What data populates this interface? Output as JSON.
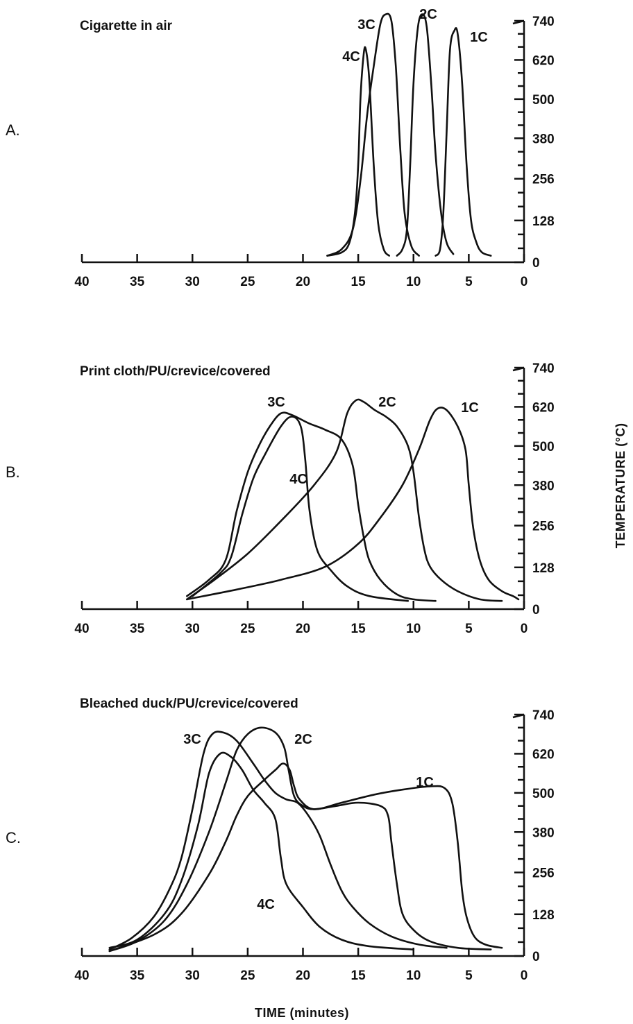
{
  "ylabel": "TEMPERATURE (°C)",
  "xlabel": "TIME (minutes)",
  "chart_data": [
    {
      "type": "line",
      "panel": "A.",
      "title": "Cigarette in air",
      "xlim": [
        40,
        0
      ],
      "ylim": [
        0,
        740
      ],
      "x_ticks": [
        40,
        35,
        30,
        25,
        20,
        15,
        10,
        5,
        0
      ],
      "x_tick_labels": [
        "40",
        "35",
        "30",
        "25",
        "20",
        "15",
        "10",
        "5",
        "0"
      ],
      "y_ticks": [
        0,
        128,
        256,
        380,
        500,
        620,
        740
      ],
      "y_tick_labels": [
        "0",
        "128",
        "256",
        "380",
        "500",
        "620",
        "740"
      ],
      "series": [
        {
          "name": "4C",
          "points": [
            [
              17.8,
              20
            ],
            [
              16.5,
              30
            ],
            [
              15.8,
              60
            ],
            [
              15.3,
              150
            ],
            [
              15,
              300
            ],
            [
              14.8,
              500
            ],
            [
              14.5,
              640
            ],
            [
              14.3,
              650
            ],
            [
              14,
              560
            ],
            [
              13.6,
              300
            ],
            [
              13.2,
              120
            ],
            [
              12.7,
              40
            ],
            [
              12.2,
              20
            ]
          ]
        },
        {
          "name": "3C",
          "points": [
            [
              17.8,
              20
            ],
            [
              16.5,
              40
            ],
            [
              15.5,
              100
            ],
            [
              14.8,
              250
            ],
            [
              14.2,
              450
            ],
            [
              13.6,
              600
            ],
            [
              13,
              730
            ],
            [
              12.5,
              760
            ],
            [
              12,
              740
            ],
            [
              11.6,
              600
            ],
            [
              11.2,
              350
            ],
            [
              10.8,
              150
            ],
            [
              10.2,
              50
            ],
            [
              9.5,
              20
            ]
          ]
        },
        {
          "name": "2C",
          "points": [
            [
              11.5,
              20
            ],
            [
              11,
              40
            ],
            [
              10.6,
              100
            ],
            [
              10.3,
              300
            ],
            [
              10,
              550
            ],
            [
              9.6,
              720
            ],
            [
              9.2,
              760
            ],
            [
              8.8,
              720
            ],
            [
              8.4,
              550
            ],
            [
              8,
              330
            ],
            [
              7.5,
              150
            ],
            [
              7,
              60
            ],
            [
              6.4,
              25
            ]
          ]
        },
        {
          "name": "1C",
          "points": [
            [
              8,
              20
            ],
            [
              7.6,
              40
            ],
            [
              7.3,
              150
            ],
            [
              7,
              400
            ],
            [
              6.7,
              650
            ],
            [
              6.3,
              710
            ],
            [
              6,
              700
            ],
            [
              5.6,
              550
            ],
            [
              5.2,
              300
            ],
            [
              4.8,
              130
            ],
            [
              4.3,
              60
            ],
            [
              3.8,
              30
            ],
            [
              3,
              20
            ]
          ]
        }
      ]
    },
    {
      "type": "line",
      "panel": "B.",
      "title": "Print cloth/PU/crevice/covered",
      "xlim": [
        40,
        0
      ],
      "ylim": [
        0,
        740
      ],
      "x_ticks": [
        40,
        35,
        30,
        25,
        20,
        15,
        10,
        5,
        0
      ],
      "x_tick_labels": [
        "40",
        "35",
        "30",
        "25",
        "20",
        "15",
        "10",
        "5",
        "0"
      ],
      "y_ticks": [
        0,
        128,
        256,
        380,
        500,
        620,
        740
      ],
      "y_tick_labels": [
        "0",
        "128",
        "256",
        "380",
        "500",
        "620",
        "740"
      ],
      "series": [
        {
          "name": "3C",
          "points": [
            [
              30.5,
              40
            ],
            [
              28.5,
              90
            ],
            [
              27,
              150
            ],
            [
              26,
              300
            ],
            [
              25,
              420
            ],
            [
              24,
              500
            ],
            [
              23,
              560
            ],
            [
              22,
              600
            ],
            [
              21,
              595
            ],
            [
              19.5,
              570
            ],
            [
              18,
              550
            ],
            [
              16.5,
              520
            ],
            [
              15.5,
              440
            ],
            [
              15,
              320
            ],
            [
              14.5,
              220
            ],
            [
              14,
              150
            ],
            [
              13,
              90
            ],
            [
              11.5,
              45
            ],
            [
              10,
              30
            ],
            [
              8,
              25
            ]
          ]
        },
        {
          "name": "4C",
          "points": [
            [
              30,
              40
            ],
            [
              27.5,
              110
            ],
            [
              26.5,
              160
            ],
            [
              25.5,
              290
            ],
            [
              24.5,
              400
            ],
            [
              23.5,
              470
            ],
            [
              22,
              560
            ],
            [
              21,
              590
            ],
            [
              20.2,
              560
            ],
            [
              19.8,
              460
            ],
            [
              19.4,
              300
            ],
            [
              18.7,
              180
            ],
            [
              17.5,
              120
            ],
            [
              16,
              70
            ],
            [
              14,
              40
            ],
            [
              10.5,
              25
            ]
          ]
        },
        {
          "name": "2C",
          "points": [
            [
              30.5,
              30
            ],
            [
              28,
              90
            ],
            [
              25,
              170
            ],
            [
              22,
              270
            ],
            [
              19,
              380
            ],
            [
              17,
              480
            ],
            [
              16,
              600
            ],
            [
              15.2,
              640
            ],
            [
              14.5,
              635
            ],
            [
              13.5,
              610
            ],
            [
              12.5,
              590
            ],
            [
              11.5,
              560
            ],
            [
              10.5,
              500
            ],
            [
              10,
              420
            ],
            [
              9.5,
              280
            ],
            [
              9,
              180
            ],
            [
              8.5,
              130
            ],
            [
              7.5,
              90
            ],
            [
              6,
              55
            ],
            [
              4,
              30
            ],
            [
              2,
              25
            ]
          ]
        },
        {
          "name": "1C",
          "points": [
            [
              30.5,
              30
            ],
            [
              26,
              60
            ],
            [
              22,
              90
            ],
            [
              18,
              130
            ],
            [
              15,
              200
            ],
            [
              13,
              280
            ],
            [
              11,
              380
            ],
            [
              9.5,
              490
            ],
            [
              8.5,
              580
            ],
            [
              7.8,
              615
            ],
            [
              7,
              610
            ],
            [
              6,
              560
            ],
            [
              5.3,
              490
            ],
            [
              5,
              380
            ],
            [
              4.6,
              250
            ],
            [
              4,
              150
            ],
            [
              3.2,
              90
            ],
            [
              2,
              55
            ],
            [
              1,
              40
            ],
            [
              0.5,
              30
            ]
          ]
        }
      ]
    },
    {
      "type": "line",
      "panel": "C.",
      "title": "Bleached duck/PU/crevice/covered",
      "xlim": [
        40,
        0
      ],
      "ylim": [
        0,
        740
      ],
      "x_ticks": [
        40,
        35,
        30,
        25,
        20,
        15,
        10,
        5,
        0
      ],
      "x_tick_labels": [
        "40",
        "35",
        "30",
        "25",
        "20",
        "15",
        "10",
        "5",
        "0"
      ],
      "y_ticks": [
        0,
        128,
        256,
        380,
        500,
        620,
        740
      ],
      "y_tick_labels": [
        "0",
        "128",
        "256",
        "380",
        "500",
        "620",
        "740"
      ],
      "series": [
        {
          "name": "4C",
          "points": [
            [
              37.5,
              25
            ],
            [
              35,
              50
            ],
            [
              32.5,
              130
            ],
            [
              31,
              230
            ],
            [
              29.5,
              400
            ],
            [
              28.5,
              560
            ],
            [
              27.5,
              620
            ],
            [
              26.5,
              610
            ],
            [
              25.5,
              570
            ],
            [
              24.5,
              510
            ],
            [
              23.5,
              470
            ],
            [
              22.5,
              420
            ],
            [
              22,
              300
            ],
            [
              21.5,
              220
            ],
            [
              20,
              150
            ],
            [
              18.5,
              90
            ],
            [
              16.5,
              50
            ],
            [
              14,
              30
            ],
            [
              10,
              20
            ]
          ]
        },
        {
          "name": "3C",
          "points": [
            [
              37.5,
              20
            ],
            [
              35.5,
              55
            ],
            [
              33.5,
              120
            ],
            [
              32,
              210
            ],
            [
              31,
              300
            ],
            [
              30,
              450
            ],
            [
              29,
              620
            ],
            [
              28.2,
              680
            ],
            [
              27.2,
              685
            ],
            [
              26,
              660
            ],
            [
              24.5,
              590
            ],
            [
              23.5,
              540
            ],
            [
              22.5,
              500
            ],
            [
              21.5,
              480
            ],
            [
              20.5,
              470
            ],
            [
              19.5,
              430
            ],
            [
              18.5,
              370
            ],
            [
              17.5,
              280
            ],
            [
              16.5,
              200
            ],
            [
              15.5,
              150
            ],
            [
              14,
              100
            ],
            [
              12,
              60
            ],
            [
              9.5,
              35
            ],
            [
              7,
              25
            ]
          ]
        },
        {
          "name": "2C",
          "points": [
            [
              37.5,
              15
            ],
            [
              35,
              45
            ],
            [
              32.5,
              110
            ],
            [
              30.5,
              220
            ],
            [
              28.5,
              380
            ],
            [
              27,
              530
            ],
            [
              26,
              630
            ],
            [
              25,
              680
            ],
            [
              23.8,
              700
            ],
            [
              22.5,
              685
            ],
            [
              21.7,
              640
            ],
            [
              21.3,
              570
            ],
            [
              20.8,
              490
            ],
            [
              20,
              460
            ],
            [
              19,
              450
            ],
            [
              17,
              460
            ],
            [
              15,
              470
            ],
            [
              13,
              460
            ],
            [
              12.3,
              430
            ],
            [
              12,
              350
            ],
            [
              11.5,
              220
            ],
            [
              11,
              130
            ],
            [
              10,
              80
            ],
            [
              8.5,
              45
            ],
            [
              6,
              25
            ],
            [
              3,
              20
            ]
          ]
        },
        {
          "name": "1C",
          "points": [
            [
              37.5,
              15
            ],
            [
              33.5,
              65
            ],
            [
              31,
              130
            ],
            [
              28.5,
              250
            ],
            [
              27,
              350
            ],
            [
              26,
              430
            ],
            [
              25,
              490
            ],
            [
              23.5,
              540
            ],
            [
              22.5,
              570
            ],
            [
              21.8,
              590
            ],
            [
              21.2,
              570
            ],
            [
              20.8,
              520
            ],
            [
              20.3,
              480
            ],
            [
              19,
              450
            ],
            [
              16.5,
              470
            ],
            [
              13.5,
              495
            ],
            [
              11,
              510
            ],
            [
              8.5,
              520
            ],
            [
              7.2,
              515
            ],
            [
              6.5,
              470
            ],
            [
              6,
              350
            ],
            [
              5.6,
              200
            ],
            [
              5.2,
              120
            ],
            [
              4.5,
              60
            ],
            [
              3.5,
              35
            ],
            [
              2,
              25
            ]
          ]
        }
      ]
    }
  ]
}
